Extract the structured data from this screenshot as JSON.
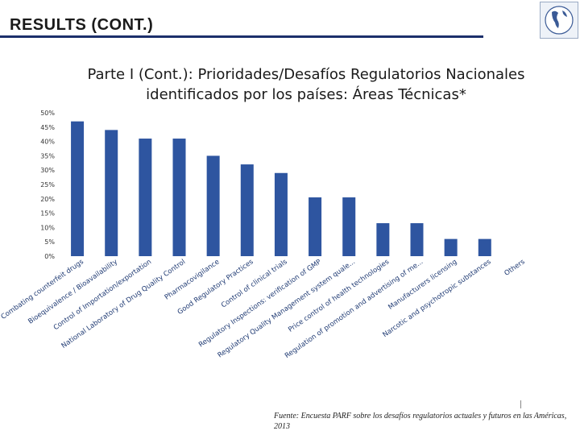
{
  "slide": {
    "title": "RESULTS (CONT.)",
    "source": "Fuente: Encuesta PARF sobre los desafíos regulatorios actuales y futuros en las Américas, 2013"
  },
  "colors": {
    "bar": "#2e55a0",
    "title_rule": "#1c2f6b",
    "axis_text": "#333333",
    "category_text": "#1f3a73"
  },
  "icons": {
    "logo": "globe-logo-icon"
  },
  "chart_data": {
    "type": "bar",
    "title_lines": [
      "Parte I (Cont.): Prioridades/Desafíos Regulatorios Nacionales",
      "identificados por los países: Áreas Técnicas*"
    ],
    "categories": [
      "Combating counterfeit drugs",
      "Bioequivalence / Bioavailability",
      "Control of Importation/exportation",
      "National Laboratory of Drug Quality Control",
      "Pharmacovigilance",
      "Good Regulatory Practices",
      "Control of clinical trials",
      "Regulatory Inspections: verification of GMP",
      "Regulatory Quality Management system quale...",
      "Price control of health technologies",
      "Regulation of promotion and advertising of me...",
      "Manufacturers licensing",
      "Narcotic and psychotropic substances",
      "Others"
    ],
    "values": [
      47,
      44,
      41,
      41,
      35,
      32,
      29,
      20.5,
      20.5,
      11.5,
      11.5,
      6,
      6,
      0
    ],
    "ylim": [
      0,
      50
    ],
    "yticks": [
      "0%",
      "5%",
      "10%",
      "15%",
      "20%",
      "25%",
      "30%",
      "35%",
      "40%",
      "45%",
      "50%"
    ],
    "grid": false,
    "legend": "none"
  }
}
